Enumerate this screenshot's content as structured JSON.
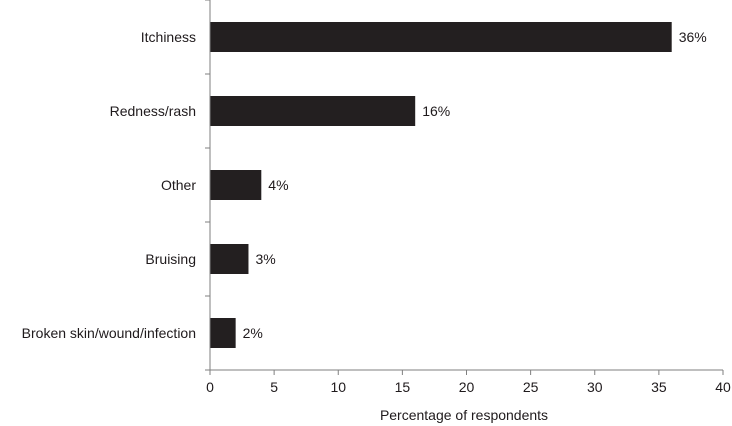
{
  "chart_data": {
    "type": "bar",
    "orientation": "horizontal",
    "categories": [
      "Itchiness",
      "Redness/rash",
      "Other",
      "Bruising",
      "Broken skin/wound/infection"
    ],
    "values": [
      36,
      16,
      4,
      3,
      2
    ],
    "data_labels": [
      "36%",
      "16%",
      "4%",
      "3%",
      "2%"
    ],
    "xlabel": "Percentage of respondents",
    "ylabel": "",
    "xlim": [
      0,
      40
    ],
    "x_ticks": [
      0,
      5,
      10,
      15,
      20,
      25,
      30,
      35,
      40
    ],
    "grid": false,
    "legend": "none",
    "colors": {
      "bar": "#231f20",
      "axis": "#7f7f7f",
      "text": "#1f1a1c"
    }
  }
}
